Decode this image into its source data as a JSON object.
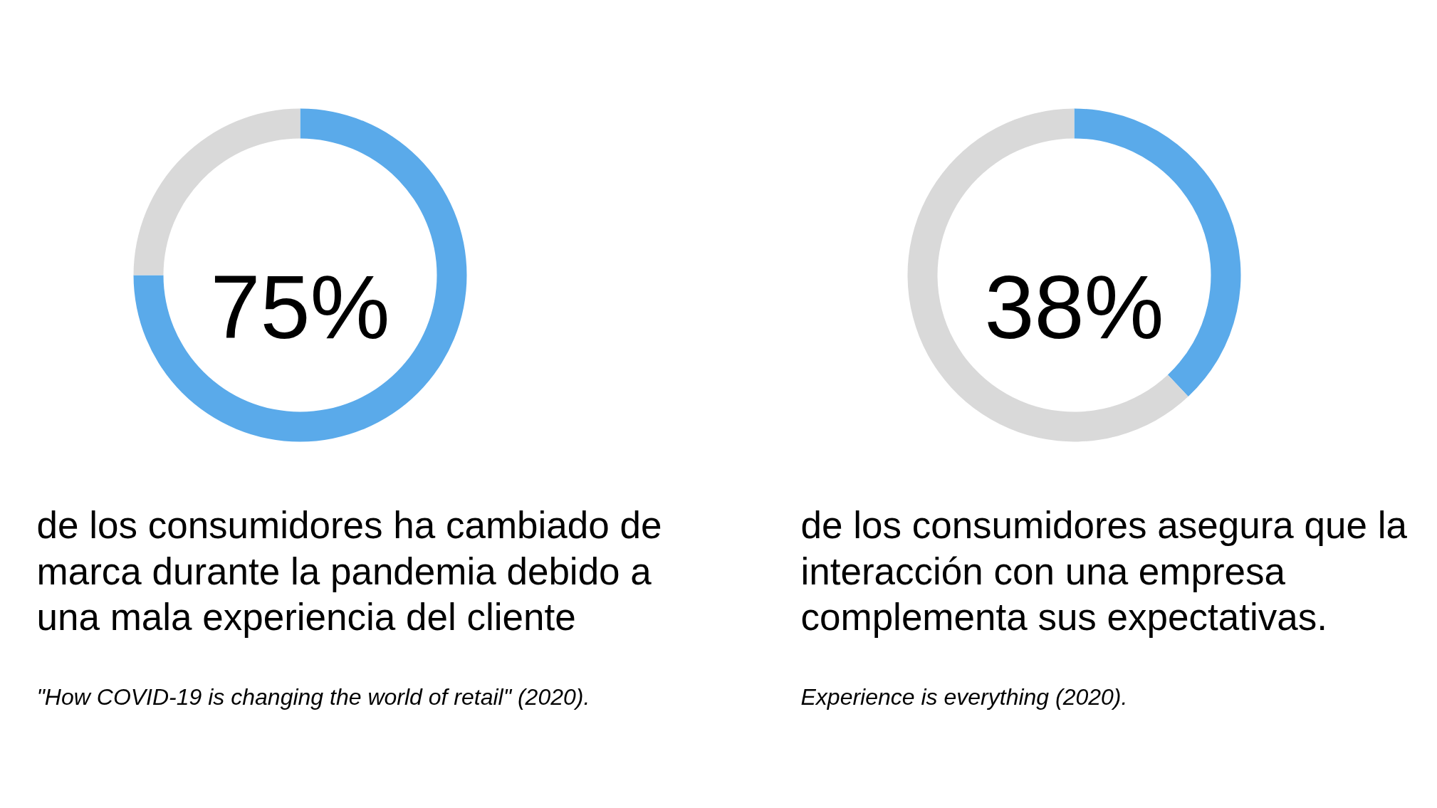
{
  "chart_data": [
    {
      "type": "donut",
      "title": "75%",
      "categories": [
        null,
        null
      ],
      "values": [
        75,
        25
      ],
      "colors": [
        "#5aaaea",
        "#d9d9d9"
      ],
      "annotations": [
        "de los consumidores ha cambiado de marca durante la pandemia debido a una mala experiencia del cliente",
        "\"How COVID-19 is changing the world of retail\" (2020)."
      ]
    },
    {
      "type": "donut",
      "title": "38%",
      "categories": [
        null,
        null
      ],
      "values": [
        38,
        62
      ],
      "colors": [
        "#5aaaea",
        "#d9d9d9"
      ],
      "annotations": [
        "de los consumidores asegura que la interacción con una empresa complementa sus expectativas.",
        "Experience is everything (2020)."
      ]
    }
  ]
}
